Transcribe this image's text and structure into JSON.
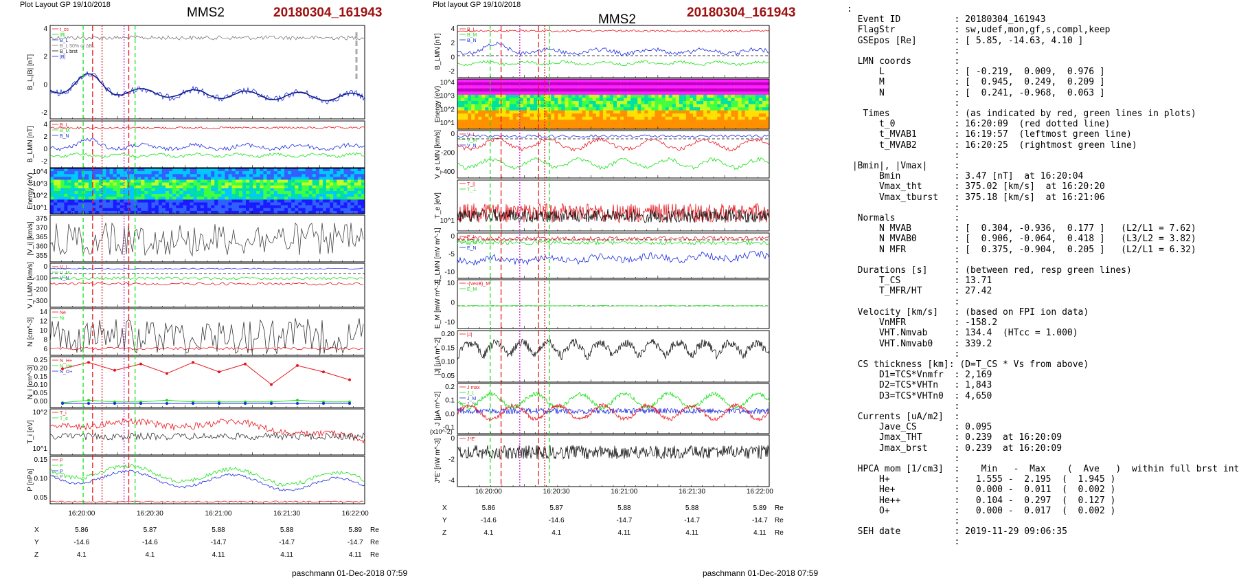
{
  "plot1": {
    "header": "Plot Layout GP 19/10/2018",
    "spacecraft": "MMS2",
    "event": "20180304_161943",
    "footer": "paschmann 01-Dec-2018 07:59"
  },
  "plot2": {
    "header": "Plot layout GP 19/10/2018",
    "spacecraft": "MMS2",
    "event": "20180304_161943",
    "footer": "paschmann 01-Dec-2018 07:59"
  },
  "colors": {
    "red": "#e8141c",
    "green": "#18e018",
    "blue": "#1828e0",
    "gray": "#7a7a7a",
    "magenta": "#d020d0",
    "black": "#111111"
  },
  "time_axis": {
    "ticks": [
      "16:20:00",
      "16:20:30",
      "16:21:00",
      "16:21:30",
      "16:22:00"
    ]
  },
  "ephemeris": {
    "rows": [
      {
        "name": "X",
        "values": [
          "5.86",
          "5.87",
          "5.88",
          "5.88",
          "5.89"
        ],
        "unit": "Re"
      },
      {
        "name": "Y",
        "values": [
          "-14.6",
          "-14.6",
          "-14.7",
          "-14.7",
          "-14.7"
        ],
        "unit": "Re"
      },
      {
        "name": "Z",
        "values": [
          "4.1",
          "4.1",
          "4.11",
          "4.11",
          "4.11"
        ],
        "unit": "Re"
      }
    ]
  },
  "chart_data": [
    {
      "type": "line",
      "title": "MMS2 20180304_161943",
      "x_range": [
        "16:19:43",
        "16:22:00"
      ],
      "panels": [
        {
          "ylabel": "B_L,|B| [nT]",
          "yticks": [
            "4",
            "2",
            "0",
            "-2"
          ],
          "legend": [
            "t_cs",
            "|B|",
            "B_L",
            "B_L 50% of ΔBL",
            "B_L brst",
            "|B|"
          ],
          "series": [
            {
              "name": "|B|",
              "level": 4.0
            },
            {
              "name": "B_L",
              "range": [
                -2.5,
                1.5
              ]
            }
          ]
        },
        {
          "ylabel": "B_LMN [nT]",
          "yticks": [
            "4",
            "2",
            "0",
            "-2"
          ],
          "legend": [
            "B_L",
            "B_M",
            "B_N"
          ]
        },
        {
          "ylabel": "Energy (eV)",
          "type": "heatmap",
          "yticks": [
            "10^4",
            "10^3",
            "10^2",
            "10^1"
          ]
        },
        {
          "ylabel": "|V_i| [km/s]",
          "yticks": [
            "375",
            "370",
            "365",
            "360",
            "355"
          ]
        },
        {
          "ylabel": "V_i LMN [km/s]",
          "yticks": [
            "0",
            "-100",
            "-200",
            "-300"
          ],
          "legend": [
            "V_L",
            "V_M",
            "V_N"
          ]
        },
        {
          "ylabel": "N [cm^-3]",
          "yticks": [
            "14",
            "12",
            "10",
            "8",
            "6"
          ],
          "legend": [
            "Ne",
            "Ni"
          ]
        },
        {
          "ylabel": "N_i [cm^-3]",
          "yticks": [
            "0.25",
            "0.20",
            "0.15",
            "0.10",
            "0.05",
            "0.00"
          ],
          "legend": [
            "N_H+",
            "N_He+",
            "N_O+"
          ],
          "series": [
            {
              "name": "N_He+",
              "values": [
                0.22,
                0.26,
                0.21,
                0.25,
                0.19,
                0.26,
                0.2,
                0.25,
                0.12,
                0.24,
                0.2,
                0.15
              ]
            },
            {
              "name": "N_H+",
              "values": [
                0.005,
                0.02,
                0.01,
                0.01,
                0.02,
                0.01,
                0.01,
                0.01,
                0.01,
                0.02,
                0.01,
                0.01
              ]
            },
            {
              "name": "N_O+",
              "values": [
                0.0,
                0.0,
                0.0,
                0.0,
                0.0,
                0.0,
                0.0,
                0.0,
                0.0,
                0.0,
                0.0,
                0.0
              ]
            }
          ]
        },
        {
          "ylabel": "T_i [eV]",
          "yticks": [
            "10^2",
            "10^1"
          ],
          "legend": [
            "T_i",
            "T_e"
          ]
        },
        {
          "ylabel": "P [nPa]",
          "yticks": [
            "0.15",
            "0.10",
            "0.05"
          ],
          "legend": [
            "P",
            "P",
            "P",
            "P"
          ]
        }
      ]
    },
    {
      "type": "line",
      "title": "MMS2 20180304_161943",
      "x_range": [
        "16:19:43",
        "16:22:00"
      ],
      "panels": [
        {
          "ylabel": "B_LMN [nT]",
          "yticks": [
            "4",
            "2",
            "0",
            "-2"
          ],
          "legend": [
            "B_L",
            "B_M",
            "B_N"
          ]
        },
        {
          "ylabel": "Energy (eV)",
          "type": "heatmap",
          "yticks": [
            "10^4",
            "10^3",
            "10^2",
            "10^1"
          ]
        },
        {
          "ylabel": "V_e LMN [km/s]",
          "yticks": [
            "0",
            "-200",
            "-400"
          ],
          "legend": [
            "V_L",
            "V_M",
            "V_N"
          ]
        },
        {
          "ylabel": "T_e [eV]",
          "yticks": [
            "10^1"
          ],
          "legend": [
            "T_||",
            "T_⊥"
          ]
        },
        {
          "ylabel": "E_LMN [mV m^-1]",
          "yticks": [
            "0",
            "-5",
            "-10"
          ],
          "legend": [
            "E_L",
            "E_M",
            "E_N"
          ]
        },
        {
          "ylabel": "E_M [mW m^-2]",
          "yticks": [
            "10",
            "0",
            "-10"
          ],
          "legend": [
            "-(VexB)_M",
            "E_M"
          ]
        },
        {
          "ylabel": "|J| [μA m^-2]",
          "yticks": [
            "0.20",
            "0.15",
            "0.10",
            "0.05"
          ],
          "legend": [
            "|J|"
          ]
        },
        {
          "ylabel": "J [μA m^-2]",
          "yticks": [
            "0.2",
            "0.1",
            "0.0",
            "-0.1"
          ],
          "legend": [
            "J max",
            "J_L",
            "J_M",
            "J_N"
          ]
        },
        {
          "ylabel": "J*E' [nW m^-3]",
          "yticks": [
            "0",
            "-2",
            "-4"
          ],
          "scale": "(x10^-2)",
          "legend": [
            "J*E'"
          ]
        }
      ]
    }
  ],
  "info": {
    "lines": [
      ":",
      "  Event ID          : 20180304_161943",
      "  FlagStr           : sw,udef,mon,gf,s,compl,keep",
      "  GSEpos [Re]       : [ 5.85, -14.63, 4.10 ]",
      "                    :",
      "  LMN coords        :",
      "      L             : [ -0.219,  0.009,  0.976 ]",
      "      M             : [  0.945,  0.249,  0.209 ]",
      "      N             : [  0.241, -0.968,  0.063 ]",
      "                    :",
      "   Times            : (as indicated by red, green lines in plots)",
      "      t_0           : 16:20:09  (red dotted line)",
      "      t_MVAB1       : 16:19:57  (leftmost green line)",
      "      t_MVAB2       : 16:20:25  (rightmost green line)",
      "                    :",
      " |Bmin|, |Vmax|     :",
      "      Bmin          : 3.47 [nT]  at 16:20:04",
      "      Vmax_tht      : 375.02 [km/s]  at 16:20:20",
      "      Vmax_tburst   : 375.18 [km/s]  at 16:21:06",
      "                    :",
      "  Normals           :",
      "      N MVAB        : [  0.304, -0.936,  0.177 ]   (L2/L1 = 7.62)",
      "      N MVAB0       : [  0.906, -0.064,  0.418 ]   (L3/L2 = 3.82)",
      "      N MFR         : [  0.375, -0.904,  0.205 ]   (L2/L1 = 6.32)",
      "                    :",
      "  Durations [s]     : (between red, resp green lines)",
      "      T_CS          : 13.71",
      "      T_MFR/HT      : 27.42",
      "                    :",
      "  Velocity [km/s]   : (based on FPI ion data)",
      "      VnMFR         : -158.2",
      "      VHT.Nmvab     : 134.4  (HTcc = 1.000)",
      "      VHT.Nmvab0    : 339.2",
      "                    :",
      "  CS thickness [km]: (D=T_CS * Vs from above)",
      "      D1=TCS*Vnmfr  : 2,169",
      "      D2=TCS*VHTn   : 1,843",
      "      D3=TCS*VHTn0  : 4,650",
      "                    :",
      "  Currents [uA/m2]  :",
      "      Jave_CS       : 0.095",
      "      Jmax_THT      : 0.239  at 16:20:09",
      "      Jmax_brst     : 0.239  at 16:20:09",
      "                    :",
      "  HPCA mom [1/cm3]  :    Min   -  Max    (  Ave   )  within full brst int",
      "      H+            :   1.555 -  2.195  (  1.945 )",
      "      He+           :   0.000 -  0.011  (  0.002 )",
      "      He++          :   0.104 -  0.297  (  0.127 )",
      "      O+            :   0.000 -  0.017  (  0.002 )",
      "                    :",
      "  SEH date          : 2019-11-29 09:06:35",
      "                    :"
    ]
  }
}
